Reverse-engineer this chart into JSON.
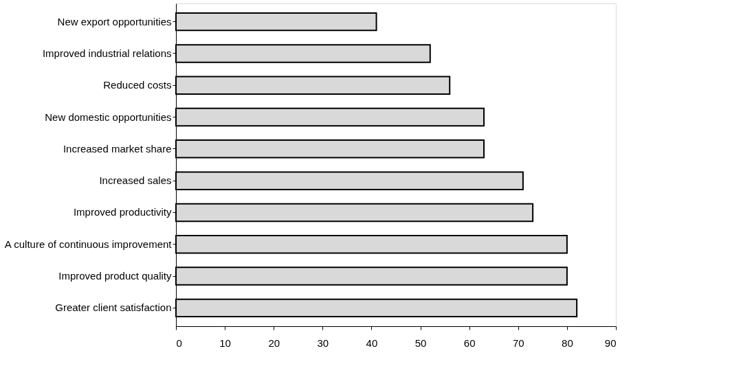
{
  "chart_data": {
    "type": "bar",
    "orientation": "horizontal",
    "categories": [
      "New export opportunities",
      "Improved industrial relations",
      "Reduced costs",
      "New domestic opportunities",
      "Increased market share",
      "Increased sales",
      "Improved productivity",
      "A culture of continuous improvement",
      "Improved product quality",
      "Greater client satisfaction"
    ],
    "values": [
      41,
      52,
      56,
      63,
      63,
      71,
      73,
      80,
      80,
      82
    ],
    "color": "#d9d9d9",
    "xlim": [
      0,
      90
    ],
    "xticks": [
      0,
      10,
      20,
      30,
      40,
      50,
      60,
      70,
      80,
      90
    ],
    "grid": false
  }
}
